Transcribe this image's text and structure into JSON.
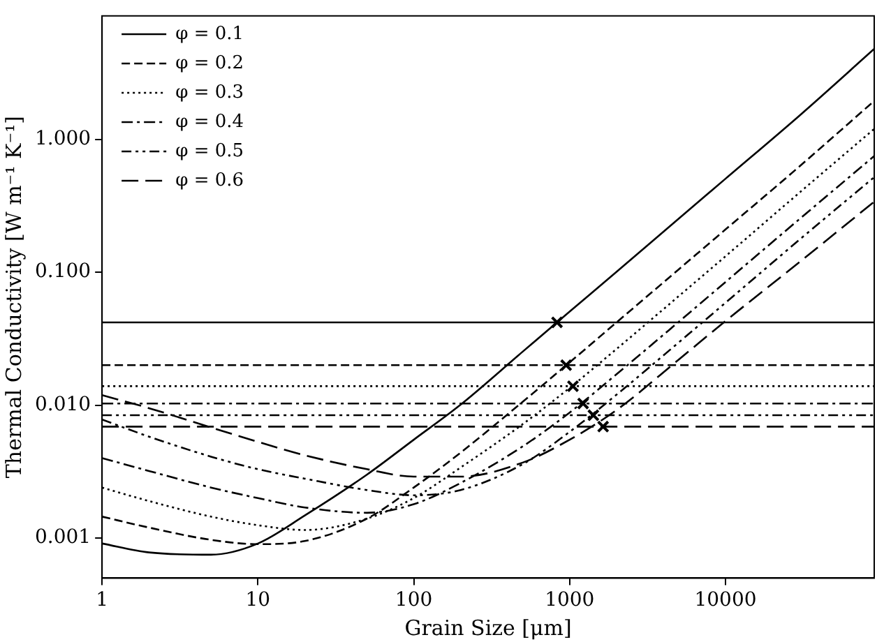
{
  "chart_data": {
    "type": "line",
    "xlabel": "Grain Size [μm]",
    "ylabel": "Thermal Conductivity [W m⁻¹ K⁻¹]",
    "log": "xy",
    "grid": false,
    "legend": "top left",
    "xlim": [
      1,
      90000
    ],
    "ylim": [
      0.0005,
      8.5
    ],
    "xticks": [
      1,
      10,
      100,
      1000,
      10000
    ],
    "yticks": [
      {
        "value": 0.001,
        "label": "0.001"
      },
      {
        "value": 0.01,
        "label": "0.010"
      },
      {
        "value": 0.1,
        "label": "0.100"
      },
      {
        "value": 1,
        "label": "1.000"
      }
    ],
    "x": [
      1,
      2,
      5,
      10,
      20,
      50,
      100,
      200,
      500,
      1000,
      2000,
      5000,
      10000,
      30000,
      90000
    ],
    "series": [
      {
        "name": "φ = 0.1",
        "color": "#000000",
        "line_style": "solid",
        "values": [
          0.00091,
          0.00078,
          0.00075,
          0.00091,
          0.00148,
          0.003,
          0.0055,
          0.0101,
          0.0253,
          0.0506,
          0.101,
          0.253,
          0.506,
          1.52,
          4.8
        ]
      },
      {
        "name": "φ = 0.2",
        "color": "#000000",
        "line_style": "dashed",
        "values": [
          0.00145,
          0.0012,
          0.00097,
          0.0009,
          0.00095,
          0.0014,
          0.0024,
          0.0044,
          0.0106,
          0.021,
          0.042,
          0.105,
          0.21,
          0.63,
          1.95
        ]
      },
      {
        "name": "φ = 0.3",
        "color": "#000000",
        "line_style": "dotted",
        "values": [
          0.0024,
          0.0019,
          0.00145,
          0.00125,
          0.00115,
          0.0014,
          0.002,
          0.0034,
          0.0072,
          0.0135,
          0.0265,
          0.066,
          0.132,
          0.4,
          1.2
        ]
      },
      {
        "name": "φ = 0.4",
        "color": "#000000",
        "line_style": "dashdot",
        "values": [
          0.004,
          0.0032,
          0.0024,
          0.002,
          0.0017,
          0.00155,
          0.0018,
          0.0026,
          0.0049,
          0.0088,
          0.0171,
          0.0423,
          0.0845,
          0.253,
          0.75
        ]
      },
      {
        "name": "φ = 0.5",
        "color": "#000000",
        "line_style": "dashdotdot",
        "values": [
          0.0078,
          0.0058,
          0.0041,
          0.0033,
          0.0028,
          0.0023,
          0.0021,
          0.0023,
          0.0036,
          0.0063,
          0.012,
          0.0296,
          0.059,
          0.177,
          0.52
        ]
      },
      {
        "name": "φ = 0.6",
        "color": "#000000",
        "line_style": "longdash",
        "values": [
          0.0119,
          0.0095,
          0.0068,
          0.0053,
          0.0042,
          0.0033,
          0.0029,
          0.0029,
          0.0037,
          0.0055,
          0.0092,
          0.022,
          0.043,
          0.12,
          0.34
        ]
      },
      {
        "type": "scatter",
        "color": "#000000",
        "marker": "cross",
        "x": [
          830,
          950,
          1050,
          1220,
          1420,
          1640
        ],
        "values": [
          0.042,
          0.02,
          0.0139,
          0.0103,
          0.0084,
          0.0069
        ]
      }
    ],
    "ref_lines": [
      {
        "axis": "y",
        "value": 0.042,
        "line_style": "solid",
        "color": "#000000"
      },
      {
        "axis": "y",
        "value": 0.02,
        "line_style": "dashed",
        "color": "#000000"
      },
      {
        "axis": "y",
        "value": 0.0139,
        "line_style": "dotted",
        "color": "#000000"
      },
      {
        "axis": "y",
        "value": 0.0103,
        "line_style": "dashdot",
        "color": "#000000"
      },
      {
        "axis": "y",
        "value": 0.0084,
        "line_style": "dashdotdot",
        "color": "#000000"
      },
      {
        "axis": "y",
        "value": 0.0069,
        "line_style": "longdash",
        "color": "#000000"
      }
    ]
  }
}
